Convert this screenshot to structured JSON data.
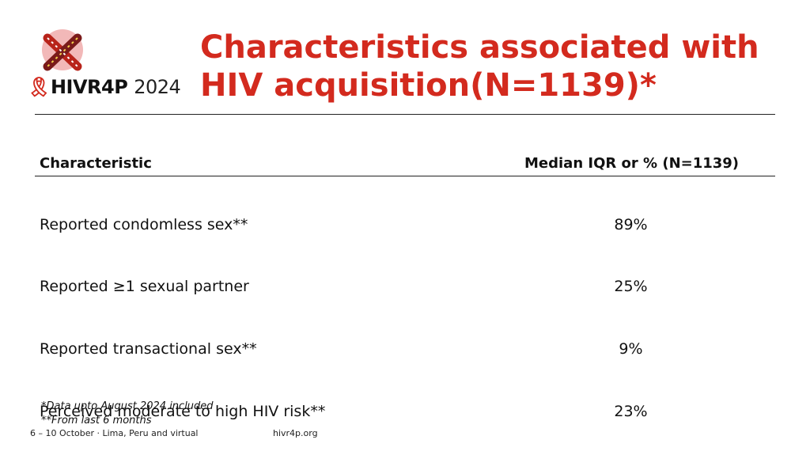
{
  "brand": {
    "logo_text": "HIVR4P",
    "logo_year": "2024",
    "colors": {
      "accent": "#d32a1e",
      "mark_bg": "#f2b8b8",
      "mark_dark": "#7a1a1a"
    }
  },
  "slide": {
    "title_line1": "Characteristics associated with",
    "title_line2": "HIV acquisition(N=1139)*"
  },
  "table": {
    "columns": [
      "Characteristic",
      "Median IQR or % (N=1139)"
    ],
    "rows": [
      {
        "label": "Reported condomless sex**",
        "value": "89%"
      },
      {
        "label": "Reported ≥1 sexual partner",
        "value": "25%"
      },
      {
        "label": "Reported transactional sex**",
        "value": "9%"
      },
      {
        "label": "Perceived moderate to high HIV risk**",
        "value": "23%"
      }
    ]
  },
  "notes": {
    "note1": "*Data upto August 2024 included",
    "note2": "**From last 6 months"
  },
  "footer": {
    "event": "6 – 10 October · Lima, Peru and virtual",
    "url": "hivr4p.org"
  }
}
